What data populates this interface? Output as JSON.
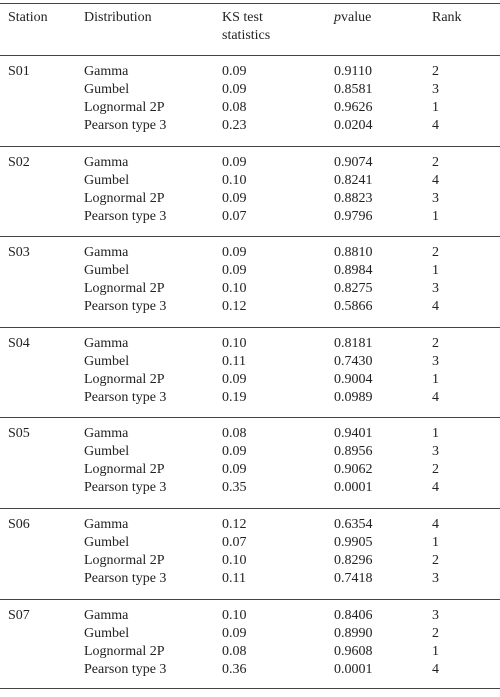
{
  "table": {
    "header": [
      "Station",
      "Distribution",
      "KS test statistics",
      {
        "italic": "p",
        "text": "value"
      },
      "Rank"
    ],
    "groups": [
      {
        "station": "S01",
        "rows": [
          [
            "Gamma",
            "0.09",
            "0.9110",
            "2"
          ],
          [
            "Gumbel",
            "0.09",
            "0.8581",
            "3"
          ],
          [
            "Lognormal 2P",
            "0.08",
            "0.9626",
            "1"
          ],
          [
            "Pearson type 3",
            "0.23",
            "0.0204",
            "4"
          ]
        ]
      },
      {
        "station": "S02",
        "rows": [
          [
            "Gamma",
            "0.09",
            "0.9074",
            "2"
          ],
          [
            "Gumbel",
            "0.10",
            "0.8241",
            "4"
          ],
          [
            "Lognormal 2P",
            "0.09",
            "0.8823",
            "3"
          ],
          [
            "Pearson type 3",
            "0.07",
            "0.9796",
            "1"
          ]
        ]
      },
      {
        "station": "S03",
        "rows": [
          [
            "Gamma",
            "0.09",
            "0.8810",
            "2"
          ],
          [
            "Gumbel",
            "0.09",
            "0.8984",
            "1"
          ],
          [
            "Lognormal 2P",
            "0.10",
            "0.8275",
            "3"
          ],
          [
            "Pearson type 3",
            "0.12",
            "0.5866",
            "4"
          ]
        ]
      },
      {
        "station": "S04",
        "rows": [
          [
            "Gamma",
            "0.10",
            "0.8181",
            "2"
          ],
          [
            "Gumbel",
            "0.11",
            "0.7430",
            "3"
          ],
          [
            "Lognormal 2P",
            "0.09",
            "0.9004",
            "1"
          ],
          [
            "Pearson type 3",
            "0.19",
            "0.0989",
            "4"
          ]
        ]
      },
      {
        "station": "S05",
        "rows": [
          [
            "Gamma",
            "0.08",
            "0.9401",
            "1"
          ],
          [
            "Gumbel",
            "0.09",
            "0.8956",
            "3"
          ],
          [
            "Lognormal 2P",
            "0.09",
            "0.9062",
            "2"
          ],
          [
            "Pearson type 3",
            "0.35",
            "0.0001",
            "4"
          ]
        ]
      },
      {
        "station": "S06",
        "rows": [
          [
            "Gamma",
            "0.12",
            "0.6354",
            "4"
          ],
          [
            "Gumbel",
            "0.07",
            "0.9905",
            "1"
          ],
          [
            "Lognormal 2P",
            "0.10",
            "0.8296",
            "2"
          ],
          [
            "Pearson type 3",
            "0.11",
            "0.7418",
            "3"
          ]
        ]
      },
      {
        "station": "S07",
        "rows": [
          [
            "Gamma",
            "0.10",
            "0.8406",
            "3"
          ],
          [
            "Gumbel",
            "0.09",
            "0.8990",
            "2"
          ],
          [
            "Lognormal 2P",
            "0.08",
            "0.9608",
            "1"
          ],
          [
            "Pearson type 3",
            "0.36",
            "0.0001",
            "4"
          ]
        ]
      }
    ]
  }
}
